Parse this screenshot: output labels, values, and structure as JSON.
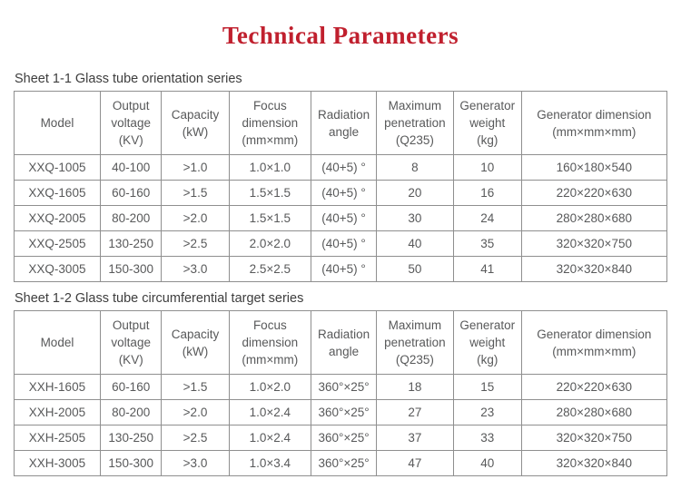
{
  "page": {
    "title": "Technical Parameters",
    "title_color": "#c0202e",
    "text_color": "#58595a",
    "border_color": "#8f8f8f"
  },
  "column_widths_pct": [
    13.2,
    9.4,
    10.3,
    12.6,
    10.0,
    11.8,
    10.4,
    22.3
  ],
  "tables": [
    {
      "caption": "Sheet 1-1 Glass tube orientation series",
      "headers": [
        [
          "Model"
        ],
        [
          "Output",
          "voltage",
          "(KV)"
        ],
        [
          "Capacity",
          "(kW)"
        ],
        [
          "Focus",
          "dimension",
          "(mm×mm)"
        ],
        [
          "Radiation",
          "angle"
        ],
        [
          "Maximum",
          "penetration",
          "(Q235)"
        ],
        [
          "Generator",
          "weight",
          "(kg)"
        ],
        [
          "Generator dimension",
          "(mm×mm×mm)"
        ]
      ],
      "rows": [
        [
          "XXQ-1005",
          "40-100",
          ">1.0",
          "1.0×1.0",
          "(40+5) °",
          "8",
          "10",
          "160×180×540"
        ],
        [
          "XXQ-1605",
          "60-160",
          ">1.5",
          "1.5×1.5",
          "(40+5) °",
          "20",
          "16",
          "220×220×630"
        ],
        [
          "XXQ-2005",
          "80-200",
          ">2.0",
          "1.5×1.5",
          "(40+5) °",
          "30",
          "24",
          "280×280×680"
        ],
        [
          "XXQ-2505",
          "130-250",
          ">2.5",
          "2.0×2.0",
          "(40+5) °",
          "40",
          "35",
          "320×320×750"
        ],
        [
          "XXQ-3005",
          "150-300",
          ">3.0",
          "2.5×2.5",
          "(40+5) °",
          "50",
          "41",
          "320×320×840"
        ]
      ]
    },
    {
      "caption": "Sheet 1-2 Glass tube circumferential target series",
      "headers": [
        [
          "Model"
        ],
        [
          "Output",
          "voltage",
          "(KV)"
        ],
        [
          "Capacity",
          "(kW)"
        ],
        [
          "Focus",
          "dimension",
          "(mm×mm)"
        ],
        [
          "Radiation",
          "angle"
        ],
        [
          "Maximum",
          "penetration",
          "(Q235)"
        ],
        [
          "Generator",
          "weight",
          "(kg)"
        ],
        [
          "Generator dimension",
          "(mm×mm×mm)"
        ]
      ],
      "rows": [
        [
          "XXH-1605",
          "60-160",
          ">1.5",
          "1.0×2.0",
          "360°×25°",
          "18",
          "15",
          "220×220×630"
        ],
        [
          "XXH-2005",
          "80-200",
          ">2.0",
          "1.0×2.4",
          "360°×25°",
          "27",
          "23",
          "280×280×680"
        ],
        [
          "XXH-2505",
          "130-250",
          ">2.5",
          "1.0×2.4",
          "360°×25°",
          "37",
          "33",
          "320×320×750"
        ],
        [
          "XXH-3005",
          "150-300",
          ">3.0",
          "1.0×3.4",
          "360°×25°",
          "47",
          "40",
          "320×320×840"
        ]
      ]
    }
  ]
}
